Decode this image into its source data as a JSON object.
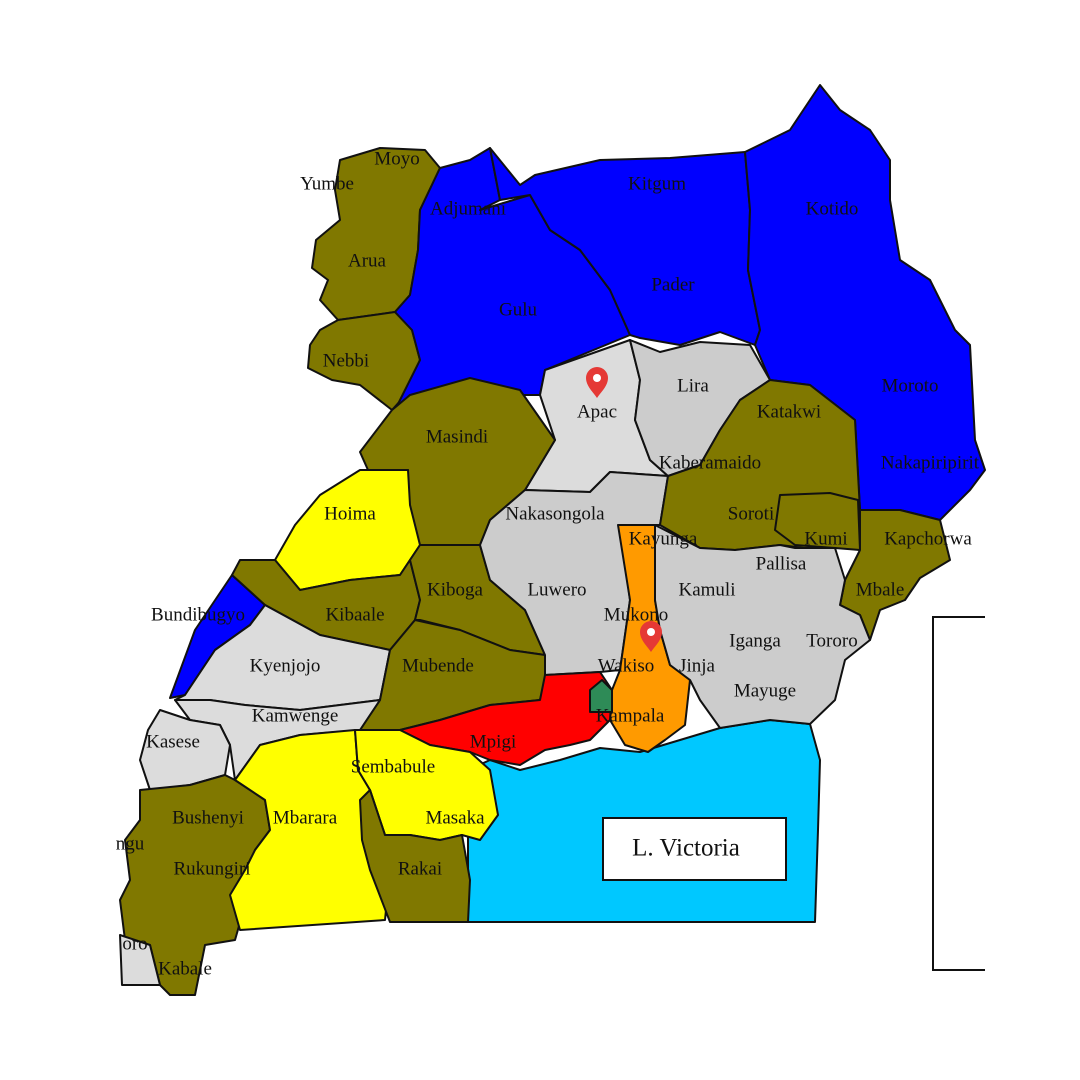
{
  "colors": {
    "blue": "#0000ff",
    "olive": "#807800",
    "yellow": "#ffff00",
    "light_grey": "#dcdcdc",
    "grey": "#cccccc",
    "orange": "#ff9a00",
    "red": "#ff0000",
    "lake": "#00c8ff",
    "green": "#2e8b57",
    "marker": "#e53935"
  },
  "lake_label": "L. Victoria",
  "districts": {
    "moyo": "Moyo",
    "yumbe": "Yumbe",
    "adjumani": "Adjumani",
    "kitgum": "Kitgum",
    "kotido": "Kotido",
    "arua": "Arua",
    "pader": "Pader",
    "gulu": "Gulu",
    "nebbi": "Nebbi",
    "apac": "Apac",
    "lira": "Lira",
    "moroto": "Moroto",
    "katakwi": "Katakwi",
    "masindi": "Masindi",
    "kaberamaido": "Kaberamaido",
    "nakapiripirit": "Nakapiripirit",
    "hoima": "Hoima",
    "nakasongola": "Nakasongola",
    "soroti": "Soroti",
    "kayunga": "Kayunga",
    "kumi": "Kumi",
    "kapchorwa": "Kapchorwa",
    "pallisa": "Pallisa",
    "luwero": "Luwero",
    "kiboga": "Kiboga",
    "kamuli": "Kamuli",
    "mbale": "Mbale",
    "bundibugyo": "Bundibugyo",
    "kibaale": "Kibaale",
    "mukono": "Mukono",
    "iganga": "Iganga",
    "tororo": "Tororo",
    "kyenjojo": "Kyenjojo",
    "mubende": "Mubende",
    "wakiso": "Wakiso",
    "jinja": "Jinja",
    "mayuge": "Mayuge",
    "kamwenge": "Kamwenge",
    "kampala": "Kampala",
    "kasese": "Kasese",
    "mpigi": "Mpigi",
    "sembabule": "Sembabule",
    "bushenyi": "Bushenyi",
    "mbarara": "Mbarara",
    "masaka": "Masaka",
    "ntungamo_partial": "ngu",
    "rukungiri": "Rukungiri",
    "rakai": "Rakai",
    "kisoro_partial": "oro",
    "kabale": "Kabale"
  },
  "markers": [
    {
      "name": "apac-marker",
      "icon": "map-pin-icon"
    },
    {
      "name": "kayunga-marker",
      "icon": "map-pin-icon"
    }
  ]
}
